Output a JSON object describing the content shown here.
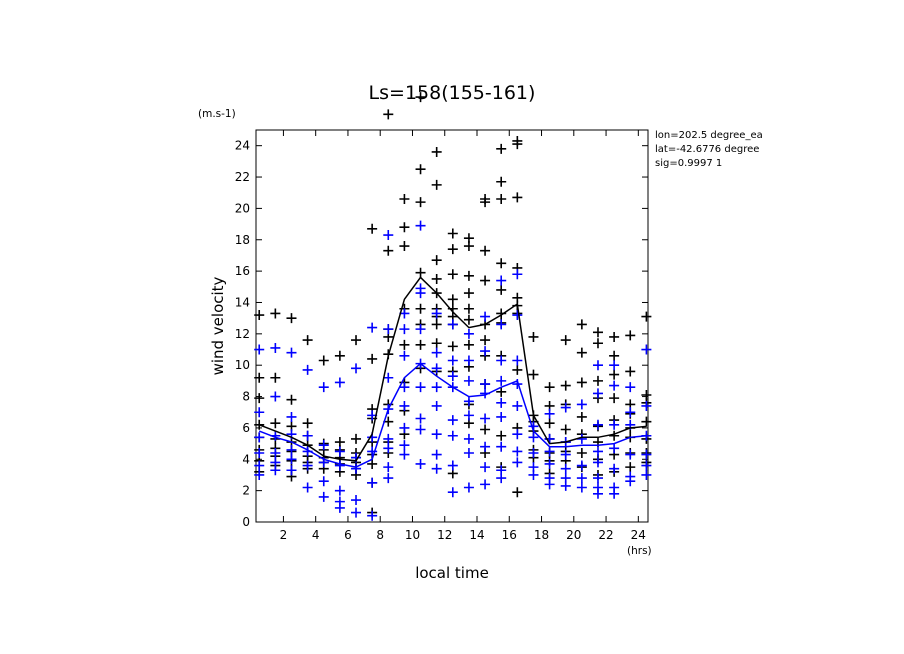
{
  "chart_data": {
    "type": "scatter",
    "title": "Ls=158(155-161)",
    "xlabel": "local time",
    "ylabel": "wind velocity",
    "yunit": "(m.s-1)",
    "xunit": "(hrs)",
    "xlim": [
      0.3,
      24.6
    ],
    "ylim": [
      0,
      25
    ],
    "xticks": [
      2,
      4,
      6,
      8,
      10,
      12,
      14,
      16,
      18,
      20,
      22,
      24
    ],
    "yticks": [
      0,
      2,
      4,
      6,
      8,
      10,
      12,
      14,
      16,
      18,
      20,
      22,
      24
    ],
    "info": [
      "lon=202.5 degree_ea",
      "lat=-42.6776 degree",
      "sig=0.9997 1"
    ],
    "colors": {
      "black": "#000000",
      "blue": "#0000ff"
    },
    "black_line": {
      "x": [
        0.5,
        1.5,
        2.5,
        3.5,
        4.5,
        5.5,
        6.5,
        7.5,
        8.5,
        9.5,
        10.5,
        11.5,
        12.5,
        13.5,
        14.5,
        15.5,
        16.5,
        17.5,
        18.5,
        19.5,
        20.5,
        21.5,
        22.5,
        23.5,
        24.5
      ],
      "y": [
        6.2,
        5.8,
        5.4,
        4.9,
        4.2,
        4.0,
        3.9,
        5.6,
        10.6,
        14.2,
        15.6,
        14.6,
        13.4,
        12.4,
        12.6,
        13.2,
        13.9,
        6.8,
        5.0,
        5.1,
        5.4,
        5.4,
        5.6,
        6.0,
        6.1
      ]
    },
    "blue_line": {
      "x": [
        0.5,
        1.5,
        2.5,
        3.5,
        4.5,
        5.5,
        6.5,
        7.5,
        8.5,
        9.5,
        10.5,
        11.5,
        12.5,
        13.5,
        14.5,
        15.5,
        16.5,
        17.5,
        18.5,
        19.5,
        20.5,
        21.5,
        22.5,
        23.5,
        24.5
      ],
      "y": [
        5.8,
        5.4,
        5.1,
        4.6,
        4.0,
        3.7,
        3.5,
        4.0,
        7.2,
        9.2,
        10.1,
        9.3,
        8.6,
        8.0,
        8.1,
        8.6,
        9.0,
        5.8,
        4.8,
        4.8,
        4.9,
        4.9,
        5.0,
        5.4,
        5.5
      ]
    },
    "black_points": [
      [
        0.5,
        13.2
      ],
      [
        0.5,
        9.2
      ],
      [
        0.5,
        7.9
      ],
      [
        0.5,
        6.2
      ],
      [
        0.5,
        5.4
      ],
      [
        0.5,
        4.6
      ],
      [
        0.5,
        3.9
      ],
      [
        0.5,
        3.2
      ],
      [
        1.5,
        13.3
      ],
      [
        1.5,
        9.2
      ],
      [
        1.5,
        6.3
      ],
      [
        1.5,
        5.3
      ],
      [
        1.5,
        4.7
      ],
      [
        1.5,
        4.2
      ],
      [
        1.5,
        3.6
      ],
      [
        2.5,
        13.0
      ],
      [
        2.5,
        7.8
      ],
      [
        2.5,
        6.1
      ],
      [
        2.5,
        5.1
      ],
      [
        2.5,
        4.5
      ],
      [
        2.5,
        3.9
      ],
      [
        2.5,
        3.3
      ],
      [
        2.5,
        2.9
      ],
      [
        3.5,
        11.6
      ],
      [
        3.5,
        6.3
      ],
      [
        3.5,
        5.5
      ],
      [
        3.5,
        4.9
      ],
      [
        3.5,
        4.2
      ],
      [
        3.5,
        3.8
      ],
      [
        3.5,
        3.4
      ],
      [
        4.5,
        10.3
      ],
      [
        4.5,
        5.0
      ],
      [
        4.5,
        4.6
      ],
      [
        4.5,
        4.1
      ],
      [
        4.5,
        3.8
      ],
      [
        4.5,
        3.4
      ],
      [
        5.5,
        10.6
      ],
      [
        5.5,
        5.1
      ],
      [
        5.5,
        4.6
      ],
      [
        5.5,
        4.1
      ],
      [
        5.5,
        3.7
      ],
      [
        5.5,
        3.2
      ],
      [
        6.5,
        11.6
      ],
      [
        6.5,
        5.3
      ],
      [
        6.5,
        4.4
      ],
      [
        6.5,
        4.1
      ],
      [
        6.5,
        3.8
      ],
      [
        6.5,
        3.4
      ],
      [
        6.5,
        3.0
      ],
      [
        7.5,
        18.7
      ],
      [
        7.5,
        10.4
      ],
      [
        7.5,
        7.2
      ],
      [
        7.5,
        6.6
      ],
      [
        7.5,
        5.1
      ],
      [
        7.5,
        4.3
      ],
      [
        7.5,
        3.7
      ],
      [
        7.5,
        2.5
      ],
      [
        7.5,
        0.6
      ],
      [
        8.5,
        26.0
      ],
      [
        8.5,
        17.3
      ],
      [
        8.5,
        12.3
      ],
      [
        8.5,
        11.8
      ],
      [
        8.5,
        10.7
      ],
      [
        8.5,
        7.5
      ],
      [
        8.5,
        6.4
      ],
      [
        8.5,
        5.1
      ],
      [
        8.5,
        4.4
      ],
      [
        9.5,
        20.6
      ],
      [
        9.5,
        18.8
      ],
      [
        9.5,
        17.6
      ],
      [
        9.5,
        13.6
      ],
      [
        9.5,
        11.3
      ],
      [
        9.5,
        8.9
      ],
      [
        9.5,
        7.1
      ],
      [
        9.5,
        5.6
      ],
      [
        10.5,
        27.1
      ],
      [
        10.5,
        22.5
      ],
      [
        10.5,
        20.4
      ],
      [
        10.5,
        15.9
      ],
      [
        10.5,
        13.6
      ],
      [
        10.5,
        12.6
      ],
      [
        10.5,
        11.3
      ],
      [
        10.5,
        9.8
      ],
      [
        11.5,
        23.6
      ],
      [
        11.5,
        21.5
      ],
      [
        11.5,
        16.7
      ],
      [
        11.5,
        15.5
      ],
      [
        11.5,
        14.6
      ],
      [
        11.5,
        13.6
      ],
      [
        11.5,
        13.1
      ],
      [
        11.5,
        12.6
      ],
      [
        11.5,
        11.4
      ],
      [
        11.5,
        9.6
      ],
      [
        12.5,
        18.4
      ],
      [
        12.5,
        17.4
      ],
      [
        12.5,
        15.8
      ],
      [
        12.5,
        14.2
      ],
      [
        12.5,
        13.6
      ],
      [
        12.5,
        13.1
      ],
      [
        12.5,
        12.6
      ],
      [
        12.5,
        11.2
      ],
      [
        12.5,
        9.6
      ],
      [
        12.5,
        3.1
      ],
      [
        13.5,
        18.1
      ],
      [
        13.5,
        17.6
      ],
      [
        13.5,
        15.7
      ],
      [
        13.5,
        14.6
      ],
      [
        13.5,
        13.6
      ],
      [
        13.5,
        12.9
      ],
      [
        13.5,
        11.3
      ],
      [
        13.5,
        9.9
      ],
      [
        13.5,
        7.5
      ],
      [
        13.5,
        6.3
      ],
      [
        14.5,
        20.6
      ],
      [
        14.5,
        20.4
      ],
      [
        14.5,
        17.3
      ],
      [
        14.5,
        15.4
      ],
      [
        14.5,
        12.6
      ],
      [
        14.5,
        11.6
      ],
      [
        14.5,
        10.6
      ],
      [
        14.5,
        8.8
      ],
      [
        14.5,
        5.9
      ],
      [
        14.5,
        4.4
      ],
      [
        15.5,
        23.8
      ],
      [
        15.5,
        21.7
      ],
      [
        15.5,
        20.6
      ],
      [
        15.5,
        16.5
      ],
      [
        15.5,
        14.8
      ],
      [
        15.5,
        13.3
      ],
      [
        15.5,
        12.7
      ],
      [
        15.5,
        10.6
      ],
      [
        15.5,
        8.3
      ],
      [
        15.5,
        5.5
      ],
      [
        15.5,
        3.5
      ],
      [
        16.5,
        24.3
      ],
      [
        16.5,
        24.1
      ],
      [
        16.5,
        20.7
      ],
      [
        16.5,
        16.2
      ],
      [
        16.5,
        14.3
      ],
      [
        16.5,
        13.8
      ],
      [
        16.5,
        13.3
      ],
      [
        16.5,
        9.7
      ],
      [
        16.5,
        6.0
      ],
      [
        16.5,
        1.9
      ],
      [
        17.5,
        11.8
      ],
      [
        17.5,
        9.4
      ],
      [
        17.5,
        6.8
      ],
      [
        17.5,
        6.4
      ],
      [
        17.5,
        5.8
      ],
      [
        17.5,
        4.6
      ],
      [
        17.5,
        4.1
      ],
      [
        18.5,
        8.6
      ],
      [
        18.5,
        7.4
      ],
      [
        18.5,
        6.3
      ],
      [
        18.5,
        5.3
      ],
      [
        18.5,
        4.4
      ],
      [
        18.5,
        3.9
      ],
      [
        18.5,
        3.1
      ],
      [
        19.5,
        11.6
      ],
      [
        19.5,
        8.7
      ],
      [
        19.5,
        7.5
      ],
      [
        19.5,
        5.9
      ],
      [
        19.5,
        5.1
      ],
      [
        19.5,
        4.5
      ],
      [
        19.5,
        3.9
      ],
      [
        20.5,
        12.6
      ],
      [
        20.5,
        10.8
      ],
      [
        20.5,
        8.9
      ],
      [
        20.5,
        6.7
      ],
      [
        20.5,
        5.6
      ],
      [
        20.5,
        4.4
      ],
      [
        20.5,
        3.5
      ],
      [
        21.5,
        12.1
      ],
      [
        21.5,
        11.4
      ],
      [
        21.5,
        9.0
      ],
      [
        21.5,
        7.9
      ],
      [
        21.5,
        6.1
      ],
      [
        21.5,
        5.1
      ],
      [
        21.5,
        4.0
      ],
      [
        21.5,
        3.0
      ],
      [
        22.5,
        11.8
      ],
      [
        22.5,
        10.6
      ],
      [
        22.5,
        9.4
      ],
      [
        22.5,
        7.9
      ],
      [
        22.5,
        6.5
      ],
      [
        22.5,
        5.5
      ],
      [
        22.5,
        4.3
      ],
      [
        22.5,
        3.2
      ],
      [
        23.5,
        11.9
      ],
      [
        23.5,
        9.6
      ],
      [
        23.5,
        7.5
      ],
      [
        23.5,
        6.9
      ],
      [
        23.5,
        6.0
      ],
      [
        23.5,
        5.4
      ],
      [
        23.5,
        4.4
      ],
      [
        23.5,
        3.5
      ],
      [
        24.5,
        13.1
      ],
      [
        24.5,
        8.1
      ],
      [
        24.5,
        7.6
      ],
      [
        24.5,
        6.4
      ],
      [
        24.5,
        5.3
      ],
      [
        24.5,
        4.4
      ],
      [
        24.5,
        3.8
      ]
    ],
    "blue_points": [
      [
        0.5,
        11.0
      ],
      [
        0.5,
        7.0
      ],
      [
        0.5,
        5.4
      ],
      [
        0.5,
        4.4
      ],
      [
        0.5,
        3.6
      ],
      [
        0.5,
        3.0
      ],
      [
        1.5,
        11.1
      ],
      [
        1.5,
        8.0
      ],
      [
        1.5,
        5.5
      ],
      [
        1.5,
        4.4
      ],
      [
        1.5,
        3.8
      ],
      [
        1.5,
        3.3
      ],
      [
        2.5,
        10.8
      ],
      [
        2.5,
        6.7
      ],
      [
        2.5,
        5.6
      ],
      [
        2.5,
        4.6
      ],
      [
        2.5,
        4.0
      ],
      [
        2.5,
        3.3
      ],
      [
        3.5,
        9.7
      ],
      [
        3.5,
        5.5
      ],
      [
        3.5,
        4.5
      ],
      [
        3.5,
        3.6
      ],
      [
        3.5,
        2.2
      ],
      [
        4.5,
        8.6
      ],
      [
        4.5,
        4.9
      ],
      [
        4.5,
        3.8
      ],
      [
        4.5,
        2.6
      ],
      [
        4.5,
        1.6
      ],
      [
        5.5,
        8.9
      ],
      [
        5.5,
        4.5
      ],
      [
        5.5,
        3.6
      ],
      [
        5.5,
        2.0
      ],
      [
        5.5,
        1.3
      ],
      [
        5.5,
        0.9
      ],
      [
        6.5,
        9.8
      ],
      [
        6.5,
        4.1
      ],
      [
        6.5,
        3.4
      ],
      [
        6.5,
        1.4
      ],
      [
        6.5,
        0.6
      ],
      [
        7.5,
        12.4
      ],
      [
        7.5,
        6.8
      ],
      [
        7.5,
        5.4
      ],
      [
        7.5,
        4.5
      ],
      [
        7.5,
        2.5
      ],
      [
        7.5,
        0.4
      ],
      [
        8.5,
        18.3
      ],
      [
        8.5,
        12.3
      ],
      [
        8.5,
        9.2
      ],
      [
        8.5,
        7.2
      ],
      [
        8.5,
        5.3
      ],
      [
        8.5,
        4.7
      ],
      [
        8.5,
        3.5
      ],
      [
        8.5,
        2.8
      ],
      [
        9.5,
        13.3
      ],
      [
        9.5,
        12.3
      ],
      [
        9.5,
        10.6
      ],
      [
        9.5,
        8.6
      ],
      [
        9.5,
        7.4
      ],
      [
        9.5,
        6.0
      ],
      [
        9.5,
        4.9
      ],
      [
        9.5,
        4.3
      ],
      [
        10.5,
        18.9
      ],
      [
        10.5,
        14.9
      ],
      [
        10.5,
        14.6
      ],
      [
        10.5,
        12.3
      ],
      [
        10.5,
        10.1
      ],
      [
        10.5,
        8.6
      ],
      [
        10.5,
        6.6
      ],
      [
        10.5,
        5.9
      ],
      [
        10.5,
        3.7
      ],
      [
        11.5,
        13.3
      ],
      [
        11.5,
        10.8
      ],
      [
        11.5,
        9.8
      ],
      [
        11.5,
        8.6
      ],
      [
        11.5,
        7.4
      ],
      [
        11.5,
        5.6
      ],
      [
        11.5,
        4.3
      ],
      [
        11.5,
        3.4
      ],
      [
        12.5,
        12.6
      ],
      [
        12.5,
        10.3
      ],
      [
        12.5,
        9.3
      ],
      [
        12.5,
        8.6
      ],
      [
        12.5,
        6.5
      ],
      [
        12.5,
        5.5
      ],
      [
        12.5,
        3.6
      ],
      [
        12.5,
        1.9
      ],
      [
        13.5,
        12.0
      ],
      [
        13.5,
        10.3
      ],
      [
        13.5,
        9.0
      ],
      [
        13.5,
        7.7
      ],
      [
        13.5,
        6.8
      ],
      [
        13.5,
        5.3
      ],
      [
        13.5,
        4.4
      ],
      [
        13.5,
        2.2
      ],
      [
        14.5,
        13.1
      ],
      [
        14.5,
        10.9
      ],
      [
        14.5,
        8.8
      ],
      [
        14.5,
        8.2
      ],
      [
        14.5,
        6.6
      ],
      [
        14.5,
        4.8
      ],
      [
        14.5,
        3.5
      ],
      [
        14.5,
        2.4
      ],
      [
        15.5,
        15.4
      ],
      [
        15.5,
        12.6
      ],
      [
        15.5,
        10.3
      ],
      [
        15.5,
        9.0
      ],
      [
        15.5,
        7.6
      ],
      [
        15.5,
        6.7
      ],
      [
        15.5,
        4.8
      ],
      [
        15.5,
        3.3
      ],
      [
        15.5,
        2.8
      ],
      [
        16.5,
        15.8
      ],
      [
        16.5,
        13.2
      ],
      [
        16.5,
        10.3
      ],
      [
        16.5,
        8.8
      ],
      [
        16.5,
        7.4
      ],
      [
        16.5,
        5.6
      ],
      [
        16.5,
        4.5
      ],
      [
        16.5,
        3.8
      ],
      [
        17.5,
        6.1
      ],
      [
        17.5,
        5.4
      ],
      [
        17.5,
        4.4
      ],
      [
        17.5,
        3.5
      ],
      [
        17.5,
        3.0
      ],
      [
        18.5,
        6.9
      ],
      [
        18.5,
        5.3
      ],
      [
        18.5,
        4.5
      ],
      [
        18.5,
        3.7
      ],
      [
        18.5,
        2.8
      ],
      [
        18.5,
        2.4
      ],
      [
        19.5,
        7.3
      ],
      [
        19.5,
        5.1
      ],
      [
        19.5,
        4.3
      ],
      [
        19.5,
        3.4
      ],
      [
        19.5,
        2.8
      ],
      [
        19.5,
        2.3
      ],
      [
        20.5,
        7.5
      ],
      [
        20.5,
        5.3
      ],
      [
        20.5,
        3.6
      ],
      [
        20.5,
        2.8
      ],
      [
        20.5,
        2.2
      ],
      [
        21.5,
        10.0
      ],
      [
        21.5,
        8.2
      ],
      [
        21.5,
        6.2
      ],
      [
        21.5,
        4.5
      ],
      [
        21.5,
        3.8
      ],
      [
        21.5,
        2.8
      ],
      [
        21.5,
        2.2
      ],
      [
        21.5,
        1.8
      ],
      [
        22.5,
        10.0
      ],
      [
        22.5,
        8.7
      ],
      [
        22.5,
        6.2
      ],
      [
        22.5,
        4.7
      ],
      [
        22.5,
        3.4
      ],
      [
        22.5,
        2.2
      ],
      [
        22.5,
        1.8
      ],
      [
        23.5,
        8.6
      ],
      [
        23.5,
        7.0
      ],
      [
        23.5,
        6.2
      ],
      [
        23.5,
        4.3
      ],
      [
        23.5,
        2.9
      ],
      [
        23.5,
        2.6
      ],
      [
        24.5,
        11.0
      ],
      [
        24.5,
        7.4
      ],
      [
        24.5,
        5.5
      ],
      [
        24.5,
        4.3
      ],
      [
        24.5,
        3.6
      ],
      [
        24.5,
        3.0
      ]
    ]
  }
}
